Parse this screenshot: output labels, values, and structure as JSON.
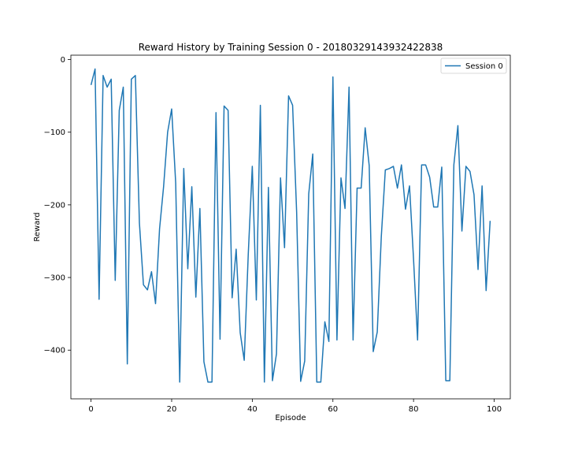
{
  "chart_data": {
    "type": "line",
    "title": "Reward History by Training Session 0 - 20180329143932422838",
    "xlabel": "Episode",
    "ylabel": "Reward",
    "xlim": [
      -5,
      104
    ],
    "ylim": [
      -467,
      6
    ],
    "xticks": [
      0,
      20,
      40,
      60,
      80,
      100
    ],
    "yticks": [
      0,
      -100,
      -200,
      -300,
      -400
    ],
    "xtick_labels": [
      "0",
      "20",
      "40",
      "60",
      "80",
      "100"
    ],
    "ytick_labels": [
      "0",
      "−100",
      "−200",
      "−300",
      "−400"
    ],
    "grid": false,
    "legend_position": "top-right",
    "series": [
      {
        "name": "Session 0",
        "color": "#1f77b4",
        "x": [
          0,
          1,
          2,
          3,
          4,
          5,
          6,
          7,
          8,
          9,
          10,
          11,
          12,
          13,
          14,
          15,
          16,
          17,
          18,
          19,
          20,
          21,
          22,
          23,
          24,
          25,
          26,
          27,
          28,
          29,
          30,
          31,
          32,
          33,
          34,
          35,
          36,
          37,
          38,
          39,
          40,
          41,
          42,
          43,
          44,
          45,
          46,
          47,
          48,
          49,
          50,
          51,
          52,
          53,
          54,
          55,
          56,
          57,
          58,
          59,
          60,
          61,
          62,
          63,
          64,
          65,
          66,
          67,
          68,
          69,
          70,
          71,
          72,
          73,
          74,
          75,
          76,
          77,
          78,
          79,
          80,
          81,
          82,
          83,
          84,
          85,
          86,
          87,
          88,
          89,
          90,
          91,
          92,
          93,
          94,
          95,
          96,
          97,
          98,
          99
        ],
        "y": [
          -35,
          -13,
          -330,
          -22,
          -38,
          -27,
          -304,
          -70,
          -38,
          -419,
          -27,
          -22,
          -225,
          -310,
          -317,
          -292,
          -336,
          -233,
          -175,
          -100,
          -68,
          -170,
          -444,
          -150,
          -288,
          -175,
          -327,
          -205,
          -416,
          -444,
          -444,
          -73,
          -385,
          -64,
          -70,
          -328,
          -261,
          -376,
          -414,
          -268,
          -147,
          -331,
          -63,
          -444,
          -176,
          -442,
          -405,
          -163,
          -259,
          -50,
          -63,
          -210,
          -443,
          -415,
          -185,
          -130,
          -444,
          -444,
          -361,
          -388,
          -24,
          -386,
          -163,
          -205,
          -38,
          -386,
          -177,
          -177,
          -94,
          -146,
          -402,
          -375,
          -244,
          -152,
          -150,
          -147,
          -177,
          -145,
          -206,
          -174,
          -275,
          -386,
          -145,
          -145,
          -162,
          -203,
          -203,
          -148,
          -442,
          -442,
          -145,
          -91,
          -236,
          -147,
          -154,
          -186,
          -289,
          -174,
          -318,
          -222
        ]
      }
    ]
  }
}
